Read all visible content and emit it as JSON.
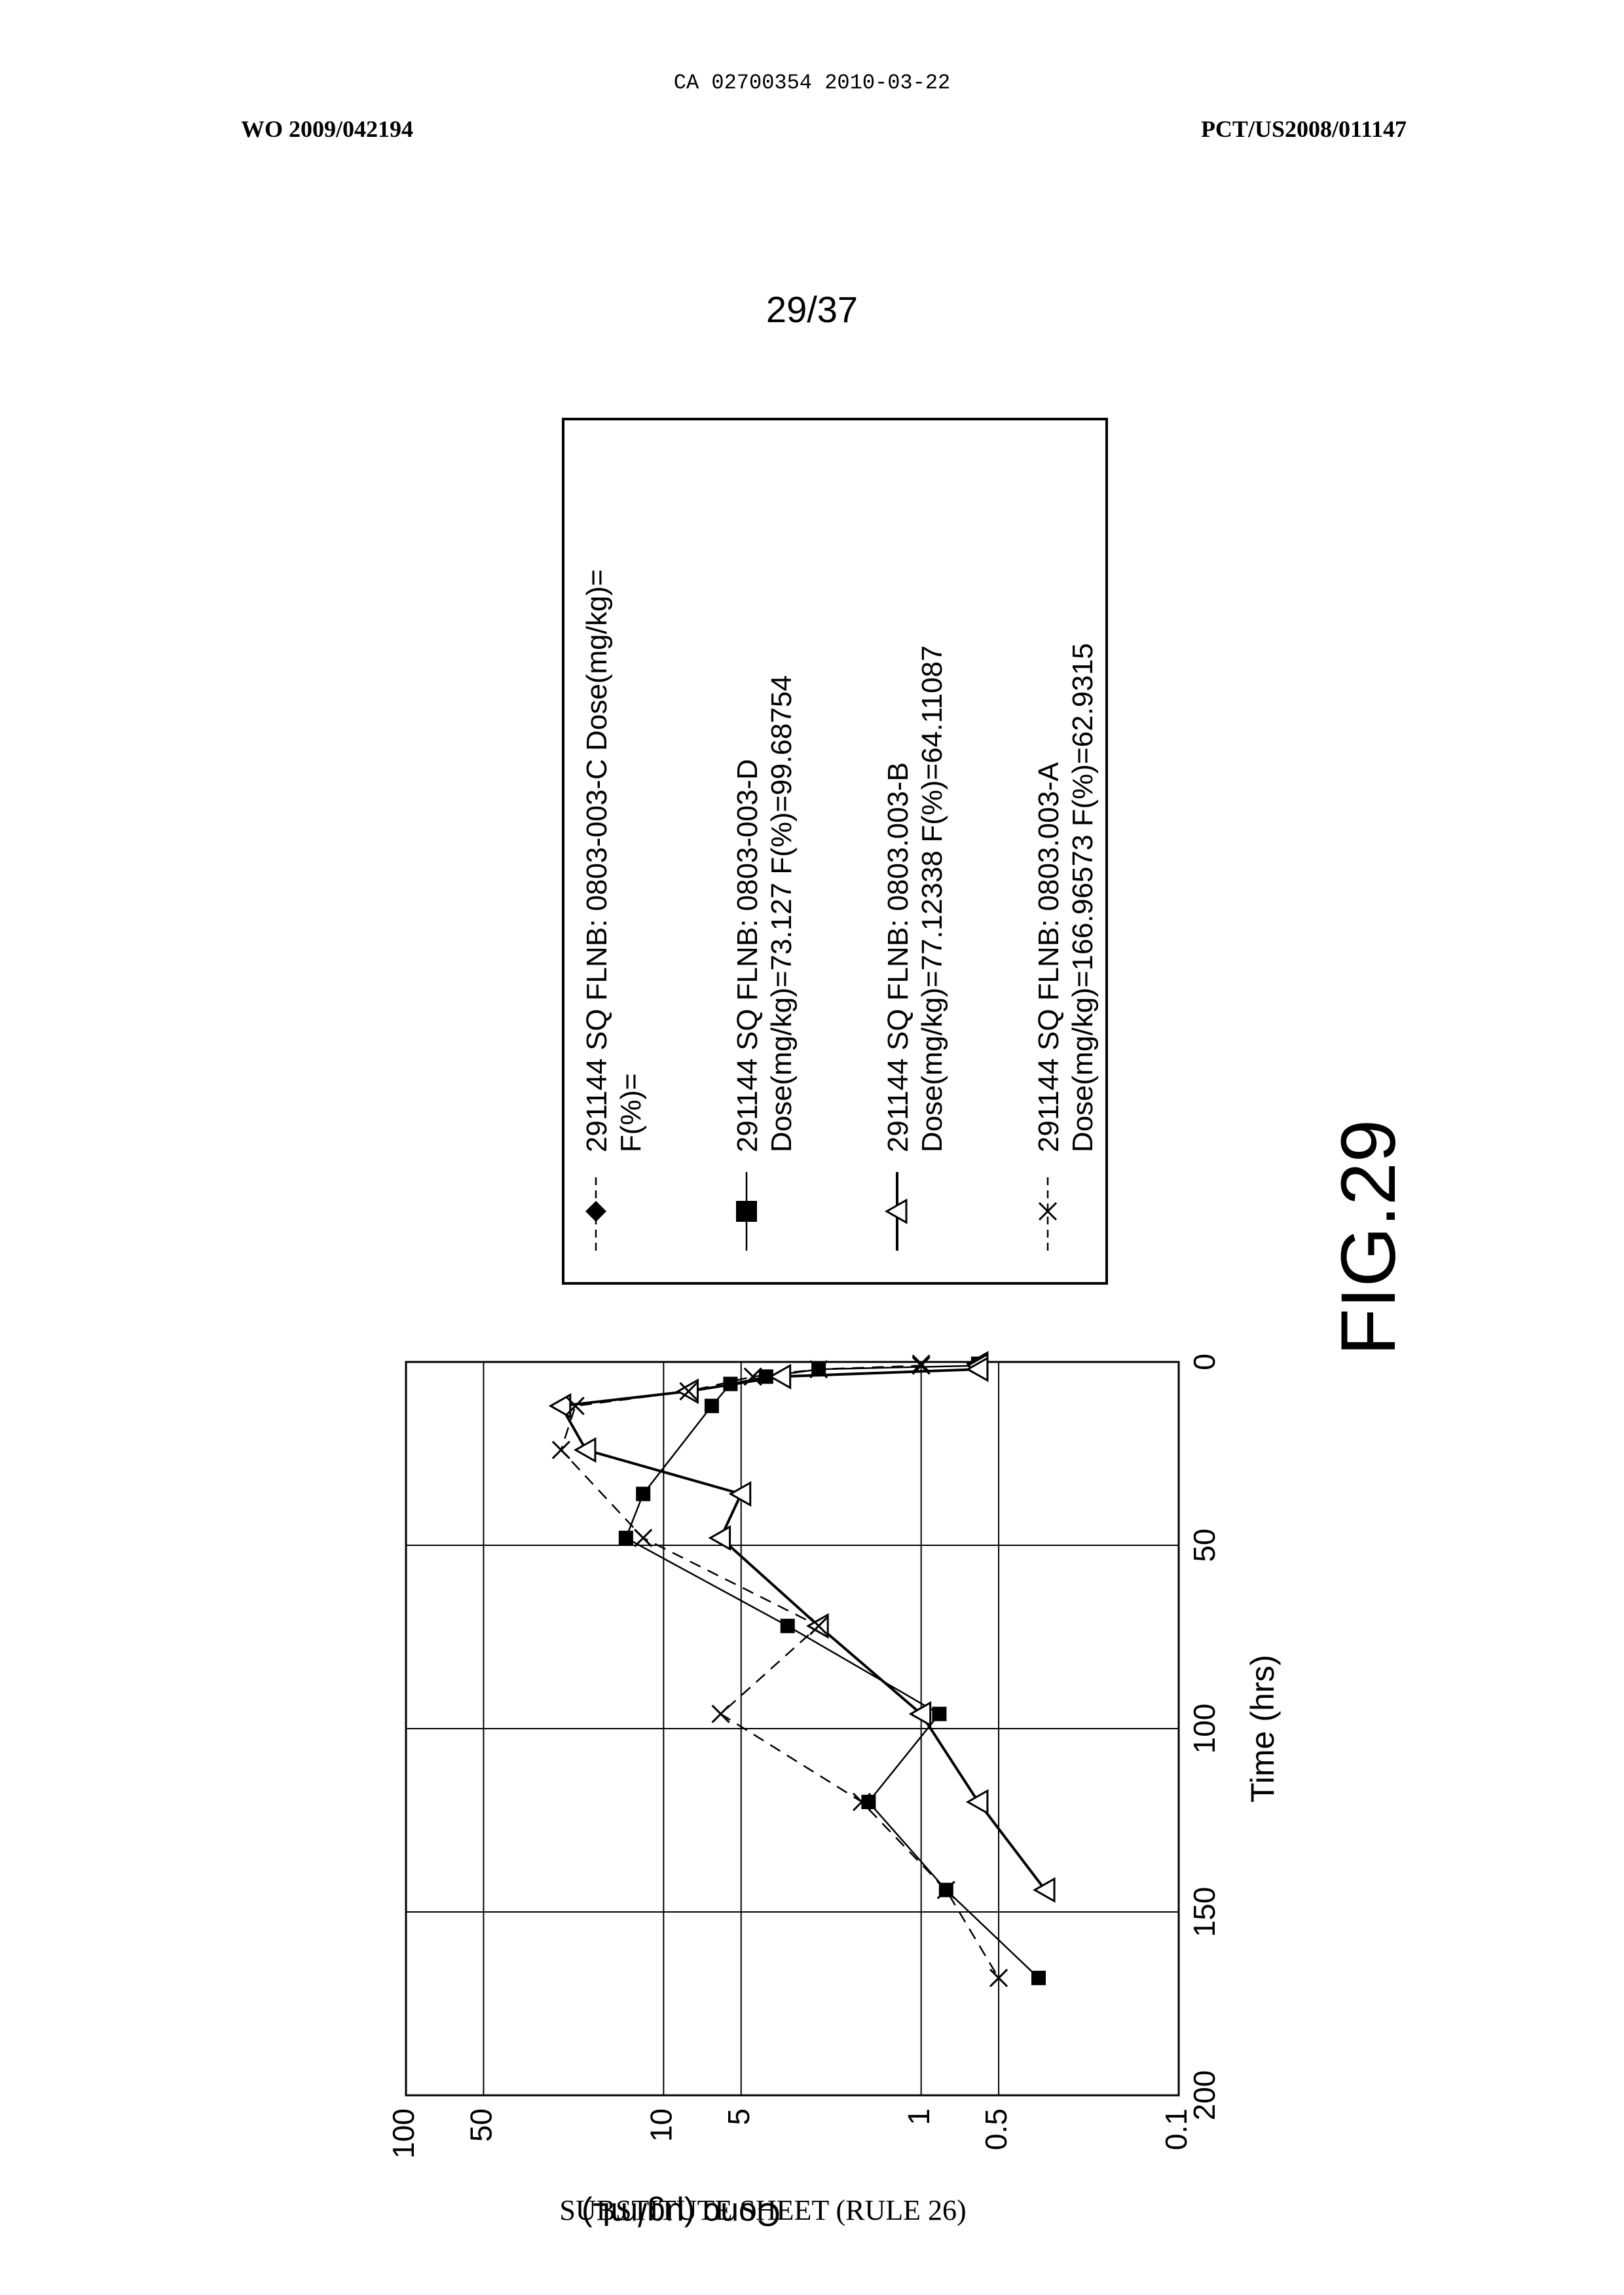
{
  "header": {
    "ca_number": "CA 02700354 2010-03-22",
    "wo_number": "WO 2009/042194",
    "pct_number": "PCT/US2008/011147",
    "page_number": "29/37"
  },
  "figure_label": "FIG.29",
  "footer": "SUBSTITUTE SHEET (RULE 26)",
  "chart_data": {
    "type": "line",
    "title": "",
    "xlabel": "Time (hrs)",
    "ylabel": "Conc (µg/mL)",
    "xlim": [
      0,
      200
    ],
    "ylim": [
      0.1,
      100
    ],
    "y_scale": "log",
    "grid": true,
    "x_ticks": [
      "0",
      "50",
      "100",
      "150",
      "200"
    ],
    "y_ticks": [
      "0.1",
      "0.5",
      "1",
      "5",
      "10",
      "50",
      "100"
    ],
    "legend_position": "right",
    "series": [
      {
        "name_lines": [
          "291144  SQ  FLNB:  0803-003-C  Dose(mg/kg)=",
          "F(%)="
        ],
        "marker": "diamond",
        "line": "dashed",
        "x": [],
        "y": []
      },
      {
        "name_lines": [
          "291144  SQ  FLNB:  0803-003-D",
          "Dose(mg/kg)=73.127  F(%)=99.68754"
        ],
        "marker": "square",
        "line": "solid",
        "x": [
          0.5,
          1,
          2,
          4,
          6,
          12,
          36,
          48,
          72,
          96,
          120,
          144,
          168
        ],
        "y": [
          0.6,
          0.6,
          2.5,
          4,
          5.5,
          6.5,
          12,
          14,
          3.3,
          0.85,
          1.6,
          0.8,
          0.35
        ]
      },
      {
        "name_lines": [
          "291144  SQ  FLNB:  0803.003-B",
          "Dose(mg/kg)=77.12338  F(%)=64.11087"
        ],
        "marker": "triangle",
        "line": "solid-thick",
        "x": [
          0.5,
          1,
          2,
          4,
          8,
          12,
          24,
          36,
          48,
          72,
          96,
          120,
          144
        ],
        "y": [
          0.6,
          0.6,
          0.6,
          3.5,
          8,
          25,
          20,
          5,
          6,
          2.5,
          1.0,
          0.6,
          0.33
        ]
      },
      {
        "name_lines": [
          "291144  SQ  FLNB:  0803.003-A",
          "Dose(mg/kg)=166.96573  F(%)=62.9315"
        ],
        "marker": "x",
        "line": "dashed",
        "x": [
          0.5,
          1,
          2,
          4,
          8,
          12,
          24,
          48,
          72,
          96,
          120,
          144,
          168
        ],
        "y": [
          1.0,
          1.0,
          2.5,
          4.5,
          8,
          22,
          25,
          12,
          2.5,
          6,
          1.7,
          0.8,
          0.5
        ]
      }
    ]
  }
}
